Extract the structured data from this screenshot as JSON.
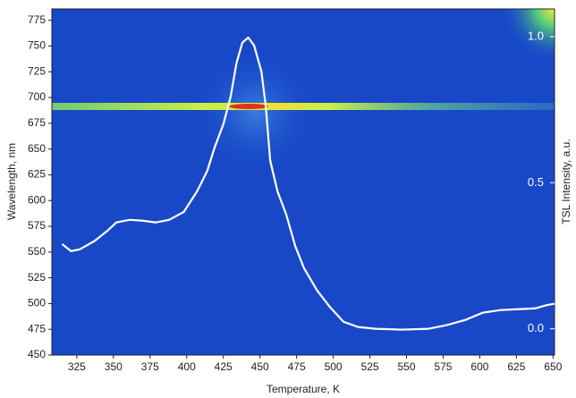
{
  "chart_data": {
    "type": "line",
    "x_label": "Temperature, K",
    "y_label": "Wavelength, nm",
    "y2_label": "TSL Intensity, a.u.",
    "xlim": [
      308,
      651
    ],
    "xticks": [
      325,
      350,
      375,
      400,
      425,
      450,
      475,
      500,
      525,
      550,
      575,
      600,
      625,
      650
    ],
    "ylim": [
      450,
      786
    ],
    "yticks": [
      450,
      475,
      500,
      525,
      550,
      575,
      600,
      625,
      650,
      675,
      700,
      725,
      750,
      775
    ],
    "y2lim": [
      -0.09,
      1.095
    ],
    "y2ticks": [
      {
        "value": 0,
        "label": "0.0"
      },
      {
        "value": 0.5,
        "label": "0.5"
      },
      {
        "value": 1,
        "label": "1.0"
      }
    ],
    "x": [
      315,
      321,
      327,
      337,
      346,
      352,
      361,
      370,
      379,
      388,
      398,
      407,
      414,
      419,
      425,
      430,
      434,
      438,
      442,
      446,
      451,
      454,
      457,
      462,
      468,
      474,
      480,
      489,
      498,
      507,
      517,
      529,
      547,
      565,
      577,
      590,
      602,
      614,
      626,
      638,
      645,
      651
    ],
    "series": [
      {
        "color": "#ffffff",
        "axis": "y2",
        "values": [
          0.29,
          0.266,
          0.272,
          0.3,
          0.336,
          0.364,
          0.373,
          0.37,
          0.364,
          0.373,
          0.4,
          0.47,
          0.54,
          0.62,
          0.7,
          0.795,
          0.91,
          0.98,
          0.997,
          0.97,
          0.88,
          0.76,
          0.575,
          0.47,
          0.39,
          0.284,
          0.208,
          0.131,
          0.073,
          0.024,
          0.006,
          0,
          -0.003,
          0,
          0.012,
          0.03,
          0.055,
          0.064,
          0.067,
          0.07,
          0.08,
          0.086
        ]
      }
    ]
  }
}
